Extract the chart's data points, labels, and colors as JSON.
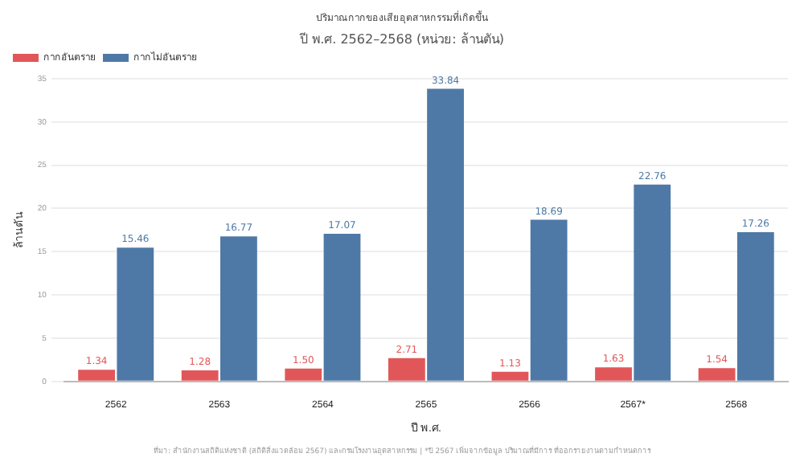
{
  "chart_data": {
    "type": "bar",
    "title": "ปริมาณกากของเสียอุตสาหกรรมที่เกิดขึ้น",
    "subtitle": "ปี พ.ศ. 2562–2568 (หน่วย: ล้านตัน)",
    "xlabel": "ปี พ.ศ.",
    "ylabel": "ล้านตัน",
    "categories": [
      "2562",
      "2563",
      "2564",
      "2565",
      "2566",
      "2567*",
      "2568"
    ],
    "series": [
      {
        "name": "กากอันตราย",
        "color": "#e15759",
        "values": [
          1.34,
          1.28,
          1.5,
          2.71,
          1.13,
          1.63,
          1.54
        ],
        "value_labels": [
          "1.34",
          "1.28",
          "1.50",
          "2.71",
          "1.13",
          "1.63",
          "1.54"
        ]
      },
      {
        "name": "กากไม่อันตราย",
        "color": "#4e79a7",
        "values": [
          15.46,
          16.77,
          17.07,
          33.84,
          18.69,
          22.76,
          17.26
        ],
        "value_labels": [
          "15.46",
          "16.77",
          "17.07",
          "33.84",
          "18.69",
          "22.76",
          "17.26"
        ]
      }
    ],
    "ylim": [
      0,
      35
    ],
    "yticks": [
      0,
      5,
      10,
      15,
      20,
      25,
      30,
      35
    ],
    "grid": "y",
    "legend": "top left",
    "annotations": [
      "ที่มา: สำนักงานสถิติแห่งชาติ (สถิติสิ่งแวดล้อม 2567) และกรมโรงงานอุตสาหกรรม | *ปี 2567 เพิ่มจากข้อมูล ปริมาณที่มีการ ที่ออกรายงานตามกำหนดการ"
    ]
  }
}
